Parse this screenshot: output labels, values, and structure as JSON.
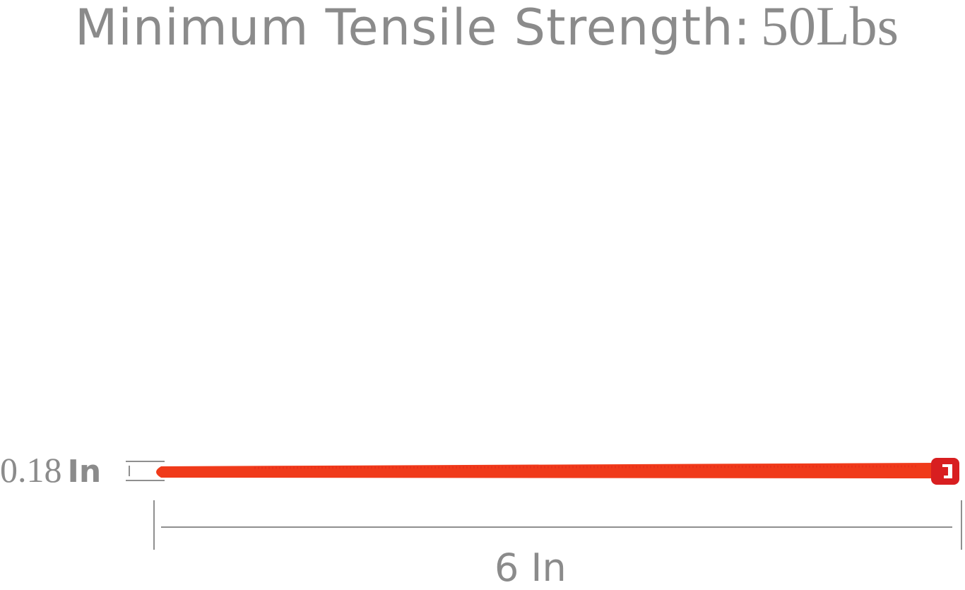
{
  "title": {
    "label": "Minimum Tensile Strength:",
    "value": "50Lbs"
  },
  "dimensions": {
    "width_value": "0.18",
    "width_unit": "In",
    "length": "6 In"
  },
  "colors": {
    "text": "#8b8b8b",
    "tie_strap": "#f03a1a",
    "tie_head": "#d81e20",
    "dimension_lines": "#8f8f8f"
  }
}
